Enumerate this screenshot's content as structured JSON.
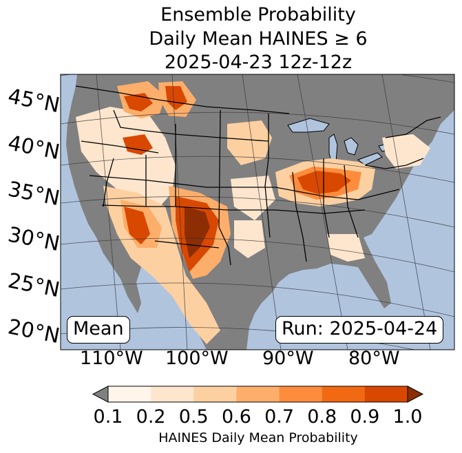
{
  "title": {
    "line1": "Ensemble Probability",
    "line2": "Daily Mean HAINES ≥ 6",
    "line3": "2025-04-23 12z-12z"
  },
  "lat_labels": [
    "45°N",
    "40°N",
    "35°N",
    "30°N",
    "25°N",
    "20°N"
  ],
  "lon_labels": [
    "110°W",
    "100°W",
    "90°W",
    "80°W"
  ],
  "stat_label": "Mean",
  "run_label": "Run: 2025-04-24",
  "colorbar": {
    "ticks": [
      "0.1",
      "0.2",
      "0.5",
      "0.6",
      "0.7",
      "0.8",
      "0.9",
      "1.0"
    ],
    "colors": [
      "#fff5eb",
      "#fee6ce",
      "#fdd0a2",
      "#fdae6b",
      "#fd8d3c",
      "#f16913",
      "#d94801"
    ],
    "under_color": "#808080",
    "over_color": "#8c2d04",
    "label": "HAINES Daily Mean Probability"
  },
  "colors": {
    "ocean": "#b0c4de",
    "land": "#808080"
  }
}
